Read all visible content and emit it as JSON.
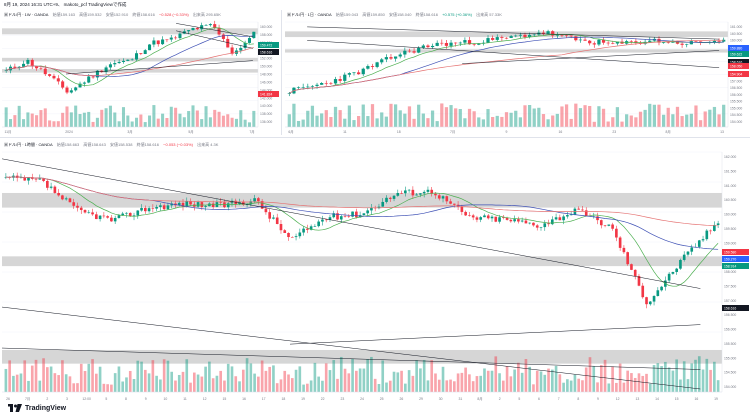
{
  "header": {
    "text": "8月 19, 2024 16:31 UTC+9、 makoto_pcf TradingViewで作成"
  },
  "colors": {
    "up": "#089981",
    "down": "#f23645",
    "ma_fast": "#4caf50",
    "ma_mid": "#3f51b5",
    "ma_slow": "#e57373",
    "zone": "#c8c8c8",
    "trend": "#131722"
  },
  "branding": {
    "name": "TradingView",
    "icon": "tradingview-logo-icon"
  },
  "panes": [
    {
      "id": "weekly",
      "legend": {
        "symbol": "米ドル/円 · 1W · OANDA",
        "open": "始値159.163",
        "high": "高値159.532",
        "low": "安値152.910",
        "close": "終値158.616",
        "change": "−0.528 (−0.33%)",
        "volume": "出来高 295.65K"
      },
      "price_labels": [
        "160.000",
        "158.000",
        "156.000",
        "154.000",
        "152.000",
        "150.000",
        "148.000",
        "146.000",
        "144.000",
        "142.000",
        "140.000",
        "138.000",
        "136.000"
      ],
      "markers": [
        "159.472",
        "158.616",
        "141.824"
      ],
      "time_labels": [
        "11月",
        "2024",
        "3月",
        "5月",
        "7月"
      ]
    },
    {
      "id": "daily",
      "legend": {
        "symbol": "米ドル/円 · 1日 · OANDA",
        "open": "始値159.043",
        "high": "高値159.850",
        "low": "安値158.040",
        "close": "終値158.616",
        "change": "+0.575 (+0.36%)",
        "volume": "出来高 57.33K"
      },
      "price_labels": [
        "161.000",
        "160.500",
        "160.000",
        "159.500",
        "159.000",
        "158.500",
        "158.000",
        "157.500",
        "157.000",
        "156.500",
        "156.000",
        "155.500",
        "155.000",
        "154.500",
        "154.000"
      ],
      "markers": [
        "159.880",
        "159.622",
        "158.616",
        "158.050",
        "154.904"
      ],
      "time_labels": [
        "6月",
        "11",
        "18",
        "7月",
        "9",
        "16",
        "23",
        "8月",
        "13"
      ]
    },
    {
      "id": "hourly",
      "legend": {
        "symbol": "米ドル/円 · 1時間 · OANDA",
        "open": "始値158.663",
        "high": "高値158.643",
        "low": "安値158.538",
        "close": "終値158.616",
        "change": "−0.053 (−0.03%)",
        "volume": "出来高 4.3K"
      },
      "price_labels": [
        "162.000",
        "161.500",
        "161.000",
        "160.500",
        "160.000",
        "159.500",
        "159.000",
        "158.500",
        "158.000",
        "157.500",
        "157.000",
        "156.500",
        "156.000",
        "155.500",
        "155.000",
        "154.500",
        "154.000"
      ],
      "markers": [
        "159.580",
        "159.270",
        "158.914",
        "158.616"
      ],
      "time_labels": [
        "26",
        "7月",
        "2",
        "3",
        "12:00",
        "5",
        "8",
        "9",
        "10",
        "11",
        "12",
        "15",
        "16",
        "17",
        "18",
        "19",
        "22",
        "23",
        "24",
        "25",
        "26",
        "29",
        "30",
        "31",
        "8月",
        "2",
        "5",
        "6",
        "7",
        "8",
        "9",
        "12",
        "13",
        "14",
        "15",
        "16",
        "19"
      ]
    }
  ],
  "chart_data": [
    {
      "type": "line",
      "title": "米ドル/円 · 1W · OANDA",
      "note": "Candlestick chart (weekly) — approximate closes read from the axis",
      "x": [
        "2023-09",
        "2023-10",
        "2023-11",
        "2023-12",
        "2024-01",
        "2024-02",
        "2024-03",
        "2024-04",
        "2024-05",
        "2024-06",
        "2024-07",
        "2024-08"
      ],
      "series": [
        {
          "name": "close",
          "values": [
            148.5,
            150.2,
            147.0,
            141.8,
            146.5,
            150.0,
            151.3,
            157.8,
            157.2,
            160.9,
            153.0,
            158.6
          ]
        }
      ],
      "ylim": [
        136,
        161
      ]
    },
    {
      "type": "line",
      "title": "米ドル/円 · 1日 · OANDA",
      "note": "Candlestick chart (daily) — approximate closes read from the axis",
      "x": [
        "6月",
        "11",
        "18",
        "7月",
        "9",
        "16",
        "23",
        "8月",
        "13"
      ],
      "series": [
        {
          "name": "close",
          "values": [
            156.2,
            157.2,
            158.4,
            161.2,
            160.8,
            158.6,
            154.0,
            147.9,
            147.2
          ]
        }
      ],
      "ylim": [
        139,
        163
      ]
    },
    {
      "type": "line",
      "title": "米ドル/円 · 1時間 · OANDA",
      "note": "Candlestick chart (hourly) — approximate closes read from the axis",
      "x": [
        "26",
        "7月",
        "5",
        "12",
        "19",
        "26",
        "8月",
        "9",
        "16",
        "19"
      ],
      "series": [
        {
          "name": "close",
          "values": [
            160.6,
            160.9,
            160.8,
            161.2,
            157.4,
            154.0,
            146.5,
            147.0,
            147.6,
            146.5
          ]
        }
      ],
      "ylim": [
        140,
        163
      ]
    }
  ]
}
